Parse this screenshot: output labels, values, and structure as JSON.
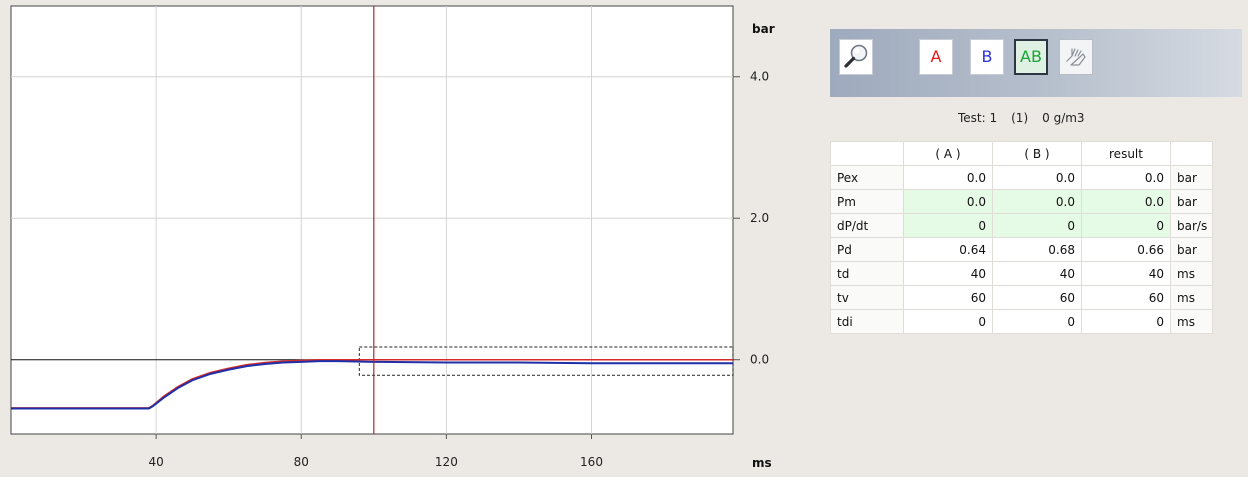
{
  "chart_data": {
    "type": "line",
    "xlabel": "ms",
    "ylabel": "bar",
    "xlim": [
      0,
      199
    ],
    "ylim": [
      -1.05,
      5.0
    ],
    "x_ticks": [
      40,
      80,
      120,
      160
    ],
    "y_ticks": [
      0.0,
      2.0,
      4.0
    ],
    "y_tick_labels": [
      "0.0",
      "2.0",
      "4.0"
    ],
    "grid": true,
    "cursor_x": 100,
    "zoom_box": {
      "x_range": [
        96,
        199
      ],
      "y_range": [
        -0.22,
        0.18
      ]
    },
    "series": [
      {
        "color": "#d42a2a",
        "x": [
          0,
          38,
          39,
          42,
          46,
          50,
          55,
          60,
          65,
          70,
          75,
          80,
          85,
          90,
          100,
          120,
          140,
          160,
          180,
          199
        ],
        "y": [
          -0.68,
          -0.68,
          -0.65,
          -0.52,
          -0.38,
          -0.27,
          -0.18,
          -0.12,
          -0.07,
          -0.04,
          -0.02,
          -0.01,
          0.0,
          0.0,
          0.0,
          0.0,
          0.0,
          0.0,
          0.0,
          0.0
        ]
      },
      {
        "color": "#1e2fa8",
        "x": [
          0,
          38,
          39,
          42,
          46,
          50,
          55,
          60,
          65,
          70,
          75,
          80,
          85,
          90,
          100,
          120,
          140,
          160,
          180,
          199
        ],
        "y": [
          -0.69,
          -0.69,
          -0.66,
          -0.54,
          -0.4,
          -0.29,
          -0.2,
          -0.14,
          -0.09,
          -0.06,
          -0.04,
          -0.03,
          -0.02,
          -0.02,
          -0.03,
          -0.04,
          -0.04,
          -0.05,
          -0.05,
          -0.05
        ]
      }
    ]
  },
  "toolbar": {
    "zoom_icon": "magnifier-icon",
    "btn_a": "A",
    "btn_b": "B",
    "btn_ab": "AB",
    "hand_icon": "hand-icon",
    "colors": {
      "a": "#e21b1b",
      "b": "#2b34d6",
      "ab": "#18a534"
    }
  },
  "test_info": {
    "test": "Test: 1",
    "index": "(1)",
    "conc": "0 g/m3"
  },
  "results": {
    "headers": [
      "",
      "( A )",
      "( B )",
      "result",
      ""
    ],
    "rows": [
      {
        "label": "Pex",
        "a": "0.0",
        "b": "0.0",
        "result": "0.0",
        "unit": "bar"
      },
      {
        "label": "Pm",
        "a": "0.0",
        "b": "0.0",
        "result": "0.0",
        "unit": "bar"
      },
      {
        "label": "dP/dt",
        "a": "0",
        "b": "0",
        "result": "0",
        "unit": "bar/s"
      },
      {
        "label": "Pd",
        "a": "0.64",
        "b": "0.68",
        "result": "0.66",
        "unit": "bar"
      },
      {
        "label": "td",
        "a": "40",
        "b": "40",
        "result": "40",
        "unit": "ms"
      },
      {
        "label": "tv",
        "a": "60",
        "b": "60",
        "result": "60",
        "unit": "ms"
      },
      {
        "label": "tdi",
        "a": "0",
        "b": "0",
        "result": "0",
        "unit": "ms"
      }
    ],
    "highlight_color": "#e6fbe6"
  }
}
